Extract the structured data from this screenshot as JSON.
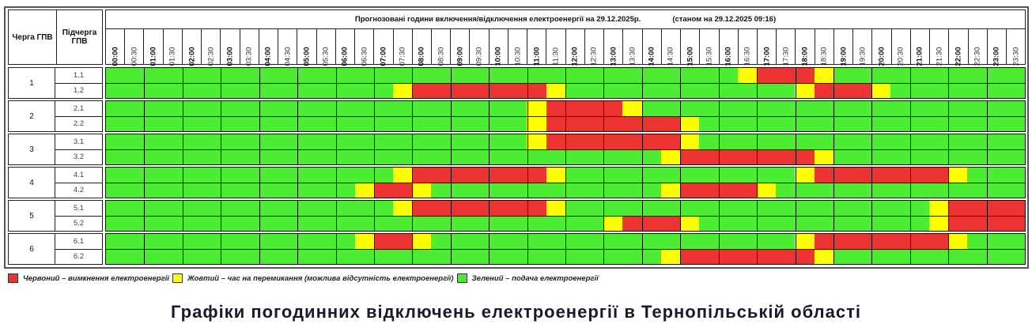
{
  "header": {
    "queue_label": "Черга ГПВ",
    "subqueue_label": "Підчерга ГПВ",
    "forecast_title": "Прогнозовані години включення/відключення електроенергії на 29.12.2025р.",
    "as_of": "(станом на 29.12.2025 09:16)"
  },
  "time_slots": [
    "00:00",
    "00:30",
    "01:00",
    "01:30",
    "02:00",
    "02:30",
    "03:00",
    "03:30",
    "04:00",
    "04:30",
    "05:00",
    "05:30",
    "06:00",
    "06:30",
    "07:00",
    "07:30",
    "08:00",
    "08:30",
    "09:00",
    "09:30",
    "10:00",
    "10:30",
    "11:00",
    "11:30",
    "12:00",
    "12:30",
    "13:00",
    "13:30",
    "14:00",
    "14:30",
    "15:00",
    "15:30",
    "16:00",
    "16:30",
    "17:00",
    "17:30",
    "18:00",
    "18:30",
    "19:00",
    "19:30",
    "20:00",
    "20:30",
    "21:00",
    "21:30",
    "22:00",
    "22:30",
    "23:00",
    "23:30"
  ],
  "colors": {
    "G": "#4cec33",
    "R": "#ee3333",
    "Y": "#ffff00"
  },
  "groups": [
    {
      "label": "1",
      "subgroups": [
        {
          "label": "1.1",
          "slots": "GGGGGGGGGGGGGGGGGGGGGGGGGGGGGGGGGYRRRYGGGGGGGGGG"
        },
        {
          "label": "1.2",
          "slots": "GGGGGGGGGGGGGGGYRRRRRRRYGGGGGGGGGGGGYRRRYGGGGGGG"
        }
      ]
    },
    {
      "label": "2",
      "subgroups": [
        {
          "label": "2.1",
          "slots": "GGGGGGGGGGGGGGGGGGGGGGYRRRRYGGGGGGGGGGGGGGGGGGGG"
        },
        {
          "label": "2.2",
          "slots": "GGGGGGGGGGGGGGGGGGGGGGYRRRRRRRYGGGGGGGGGGGGGGGGG"
        }
      ]
    },
    {
      "label": "3",
      "subgroups": [
        {
          "label": "3.1",
          "slots": "GGGGGGGGGGGGGGGGGGGGGGYRRRRRRRYGGGGGGGGGGGGGGGGG"
        },
        {
          "label": "3.2",
          "slots": "GGGGGGGGGGGGGGGGGGGGGGGGGGGGGYRRRRRRRYGGGGGGGGGG"
        }
      ]
    },
    {
      "label": "4",
      "subgroups": [
        {
          "label": "4.1",
          "slots": "GGGGGGGGGGGGGGGYRRRRRRRYGGGGGGGGGGGGYRRRRRRRYGGG"
        },
        {
          "label": "4.2",
          "slots": "GGGGGGGGGGGGGYRRYGGGGGGGGGGGGYRRRRYGGGGGGGGGGGGG"
        }
      ]
    },
    {
      "label": "5",
      "subgroups": [
        {
          "label": "5.1",
          "slots": "GGGGGGGGGGGGGGGYRRRRRRRYGGGGGGGGGGGGGGGGGGGYRRRR"
        },
        {
          "label": "5.2",
          "slots": "GGGGGGGGGGGGGGGGGGGGGGGGGGYRRRYGGGGGGGGGGGGYRRRR"
        }
      ]
    },
    {
      "label": "6",
      "subgroups": [
        {
          "label": "6.1",
          "slots": "GGGGGGGGGGGGGYRRYGGGGGGGGGGGGGGGGGGGYRRRRRRRYGGG"
        },
        {
          "label": "6.2",
          "slots": "GGGGGGGGGGGGGGGGGGGGGGGGGGGGGYRRRRRRRYGGGGGGGGGG"
        }
      ]
    }
  ],
  "legend": [
    {
      "color": "#ee3333",
      "label": "Червоний – вимкнення електроенергії"
    },
    {
      "color": "#ffff00",
      "label": "Жовтий – час на перемикання (можлива відсутність електроенергії)"
    },
    {
      "color": "#4cec33",
      "label": "Зелений – подача електроенергії"
    }
  ],
  "footer_title": "Графіки погодинних відключень електроенергії в Тернопільській області"
}
